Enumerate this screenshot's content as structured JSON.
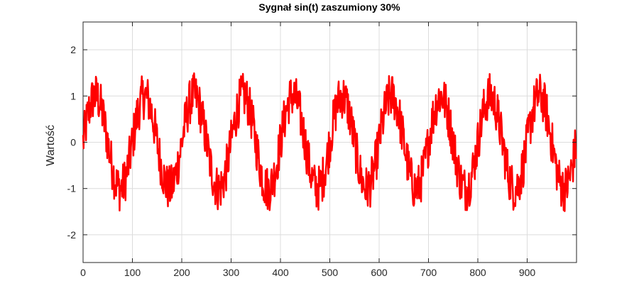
{
  "chart_data": {
    "type": "line",
    "title": "Sygnał sin(t) zaszumiony 30%",
    "xlabel": "",
    "ylabel": "Wartość",
    "xlim": [
      0,
      1000
    ],
    "ylim": [
      -2.6,
      2.6
    ],
    "xticks": [
      0,
      100,
      200,
      300,
      400,
      500,
      600,
      700,
      800,
      900
    ],
    "yticks": [
      -2,
      -1,
      0,
      1,
      2
    ],
    "grid": true,
    "legend": "none",
    "series": [
      {
        "color": "#ff0000",
        "x_start": 0,
        "x_step": 1,
        "count": 1000,
        "period": 100,
        "amplitude": 1.0,
        "noise_amplitude": 0.5,
        "description_values": [
          0.0,
          1.0,
          0.0,
          -1.0
        ]
      }
    ]
  }
}
